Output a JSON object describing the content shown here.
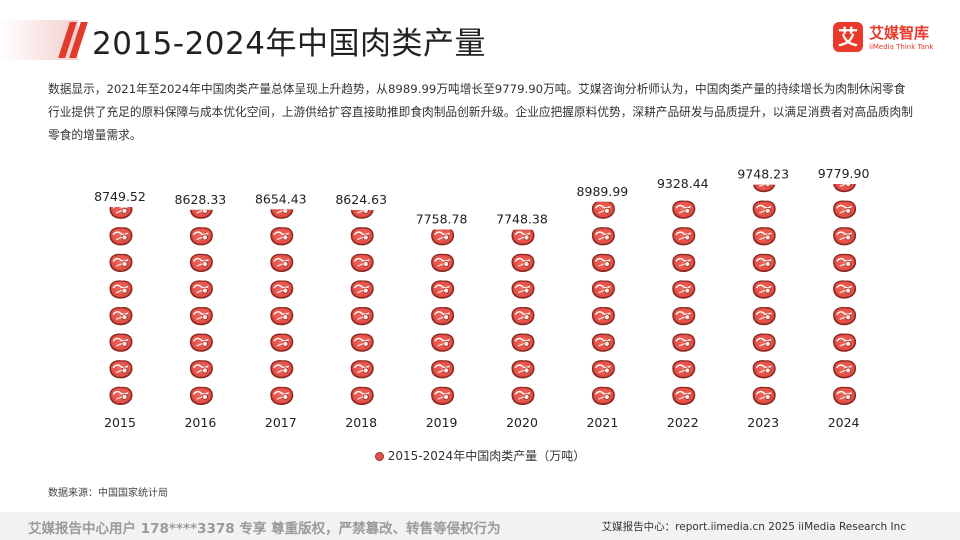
{
  "header": {
    "title": "2015-2024年中国肉类产量"
  },
  "brand": {
    "logo_glyph": "艾",
    "name_cn": "艾媒智库",
    "name_en": "iiMedia Think Tank",
    "color": "#e8392a"
  },
  "description": "数据显示，2021年至2024年中国肉类产量总体呈现上升趋势，从8989.99万吨增长至9779.90万吨。艾媒咨询分析师认为，中国肉类产量的持续增长为肉制休闲零食行业提供了充足的原料保障与成本优化空间，上游供给扩容直接助推即食肉制品创新升级。企业应把握原料优势，深耕产品研发与品质提升，以满足消费者对高品质肉制零食的增量需求。",
  "chart_data": {
    "type": "bar",
    "style": "pictograph-stacked-steak-icons",
    "categories": [
      "2015",
      "2016",
      "2017",
      "2018",
      "2019",
      "2020",
      "2021",
      "2022",
      "2023",
      "2024"
    ],
    "series": [
      {
        "name": "2015-2024年中国肉类产量（万吨）",
        "values": [
          8749.52,
          8628.33,
          8654.43,
          8624.63,
          7758.78,
          7748.38,
          8989.99,
          9328.44,
          9748.23,
          9779.9
        ],
        "labels": [
          "8749.52",
          "8628.33",
          "8654.43",
          "8624.63",
          "7758.78",
          "7748.38",
          "8989.99",
          "9328.44",
          "9748.23",
          "9779.90"
        ]
      }
    ],
    "ylim": [
      0,
      9779.9
    ],
    "grid": false,
    "legend_position": "bottom-center",
    "icon_color": "#e0473f"
  },
  "legend": {
    "label": "2015-2024年中国肉类产量（万吨）"
  },
  "source": "数据来源：中国国家统计局",
  "footer": {
    "left": "艾媒报告中心用户 178****3378 专享 尊重版权，严禁篡改、转售等侵权行为",
    "right": "艾媒报告中心：report.iimedia.cn  2025 iiMedia Research Inc"
  }
}
